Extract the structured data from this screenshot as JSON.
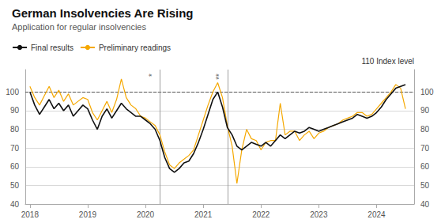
{
  "chart_data": {
    "type": "line",
    "title": "German Insolvencies Are Rising",
    "subtitle": "Application for regular insolvencies",
    "x": [
      2018.0,
      2018.083,
      2018.167,
      2018.25,
      2018.333,
      2018.417,
      2018.5,
      2018.583,
      2018.667,
      2018.75,
      2018.833,
      2018.917,
      2019.0,
      2019.083,
      2019.167,
      2019.25,
      2019.333,
      2019.417,
      2019.5,
      2019.583,
      2019.667,
      2019.75,
      2019.833,
      2019.917,
      2020.0,
      2020.083,
      2020.167,
      2020.25,
      2020.333,
      2020.417,
      2020.5,
      2020.583,
      2020.667,
      2020.75,
      2020.833,
      2020.917,
      2021.0,
      2021.083,
      2021.167,
      2021.25,
      2021.333,
      2021.417,
      2021.5,
      2021.583,
      2021.667,
      2021.75,
      2021.833,
      2021.917,
      2022.0,
      2022.083,
      2022.167,
      2022.25,
      2022.333,
      2022.417,
      2022.5,
      2022.583,
      2022.667,
      2022.75,
      2022.833,
      2022.917,
      2023.0,
      2023.083,
      2023.167,
      2023.25,
      2023.333,
      2023.417,
      2023.5,
      2023.583,
      2023.667,
      2023.75,
      2023.833,
      2023.917,
      2024.0,
      2024.083,
      2024.167,
      2024.25,
      2024.333,
      2024.417,
      2024.5
    ],
    "series": [
      {
        "name": "Final results",
        "color": "#111111",
        "values": [
          100,
          93,
          88,
          92,
          96,
          91,
          94,
          90,
          93,
          87,
          90,
          93,
          91,
          85,
          80,
          87,
          91,
          86,
          90,
          94,
          91,
          89,
          87,
          87,
          85,
          83,
          80,
          74,
          65,
          59,
          57,
          59,
          62,
          63,
          67,
          73,
          80,
          88,
          96,
          100,
          92,
          81,
          77,
          71,
          69,
          71,
          73,
          72,
          71,
          73,
          71,
          74,
          77,
          75,
          77,
          79,
          78,
          79,
          81,
          80,
          79,
          80,
          81,
          82,
          83,
          84,
          85,
          86,
          88,
          87,
          86,
          87,
          89,
          92,
          96,
          99,
          102,
          103,
          104
        ]
      },
      {
        "name": "Preliminary readings",
        "color": "#f5a800",
        "values": [
          103,
          97,
          93,
          98,
          103,
          97,
          101,
          95,
          99,
          93,
          95,
          97,
          96,
          89,
          85,
          90,
          95,
          89,
          96,
          107,
          97,
          93,
          91,
          87,
          86,
          84,
          82,
          77,
          68,
          61,
          59,
          62,
          64,
          66,
          69,
          77,
          85,
          93,
          100,
          105,
          97,
          82,
          71,
          51,
          69,
          80,
          75,
          74,
          69,
          73,
          74,
          74,
          94,
          77,
          79,
          79,
          74,
          77,
          79,
          75,
          78,
          79,
          81,
          82,
          83,
          85,
          86,
          87,
          89,
          89,
          87,
          88,
          91,
          94,
          97,
          100,
          104,
          102,
          91
        ]
      }
    ],
    "xlim": [
      2017.92,
      2024.65
    ],
    "xticks": [
      2018,
      2019,
      2020,
      2021,
      2022,
      2023,
      2024
    ],
    "ylim": [
      40,
      112
    ],
    "yticks": [
      40,
      50,
      60,
      70,
      80,
      90,
      100
    ],
    "y2lim": [
      40,
      112
    ],
    "y2ticks": [
      40,
      50,
      60,
      70,
      80,
      90,
      100
    ],
    "y2label": "110 Index level",
    "reference_lines": [
      {
        "axis": "y",
        "value": 100,
        "line_style": "dashed",
        "color": "#555555"
      },
      {
        "axis": "x",
        "value": 2020.25,
        "label": "*",
        "color": "#888888"
      },
      {
        "axis": "x",
        "value": 2021.42,
        "label": "**",
        "color": "#888888"
      }
    ],
    "grid": true,
    "legend": "top left"
  }
}
